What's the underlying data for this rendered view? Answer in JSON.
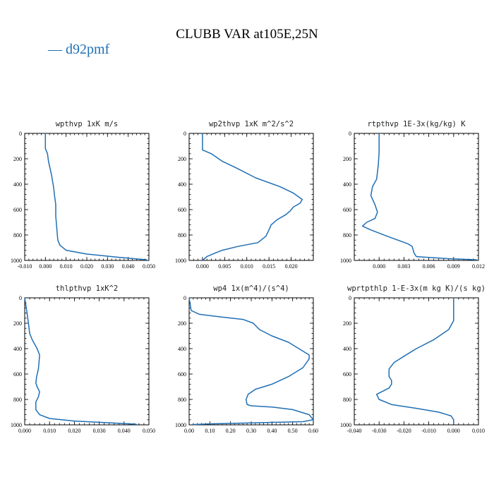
{
  "figure": {
    "title": "CLUBB VAR at105E,25N",
    "legend_label": "d92pmf",
    "series_color": "#1f6fb4"
  },
  "chart_data": [
    {
      "type": "line",
      "title": "wpthvp  1xK m/s",
      "xlim": [
        -0.01,
        0.05
      ],
      "ylim": [
        1000,
        0
      ],
      "xticks": [
        -0.01,
        0.0,
        0.01,
        0.02,
        0.03,
        0.04,
        0.05
      ],
      "xtick_labels": [
        "-0.010",
        "0.000",
        "0.010",
        "0.020",
        "0.030",
        "0.040",
        "0.050"
      ],
      "yticks": [
        0,
        200,
        400,
        600,
        800,
        1000
      ],
      "ytick_labels": [
        "0",
        "200",
        "400",
        "600",
        "800",
        "1000"
      ],
      "series": [
        {
          "x": [
            0.0,
            0.0,
            0.001,
            0.0015,
            0.003,
            0.004,
            0.0045,
            0.005,
            0.005,
            0.0055,
            0.006,
            0.007,
            0.01,
            0.02,
            0.035,
            0.049
          ],
          "y": [
            0,
            120,
            160,
            220,
            330,
            430,
            500,
            560,
            650,
            750,
            840,
            880,
            920,
            950,
            975,
            995
          ]
        }
      ]
    },
    {
      "type": "line",
      "title": "wp2thvp  1xK m^2/s^2",
      "xlim": [
        -0.003,
        0.025
      ],
      "ylim": [
        1000,
        0
      ],
      "xticks": [
        0.0,
        0.005,
        0.01,
        0.015,
        0.02
      ],
      "xtick_labels": [
        "0.000",
        "0.005",
        "0.010",
        "0.015",
        "0.020"
      ],
      "yticks": [
        0,
        200,
        400,
        600,
        800,
        1000
      ],
      "ytick_labels": [
        "0",
        "200",
        "400",
        "600",
        "800",
        "1000"
      ],
      "series": [
        {
          "x": [
            0.0,
            0.0,
            0.0,
            0.002,
            0.0045,
            0.0075,
            0.012,
            0.0175,
            0.0205,
            0.0225,
            0.022,
            0.0205,
            0.0198,
            0.0188,
            0.0168,
            0.0155,
            0.015,
            0.0143,
            0.0125,
            0.008,
            0.0045,
            0.003,
            0.001,
            0.0
          ],
          "y": [
            0,
            110,
            130,
            160,
            220,
            270,
            350,
            420,
            470,
            520,
            550,
            580,
            610,
            640,
            680,
            720,
            760,
            810,
            860,
            890,
            920,
            940,
            970,
            1000
          ]
        }
      ]
    },
    {
      "type": "line",
      "title": "rtpthvp  1E-3x(kg/kg) K",
      "xlim": [
        -0.003,
        0.012
      ],
      "ylim": [
        1000,
        0
      ],
      "xticks": [
        0.0,
        0.003,
        0.006,
        0.009,
        0.012
      ],
      "xtick_labels": [
        "0.000",
        "0.003",
        "0.006",
        "0.009",
        "0.012"
      ],
      "yticks": [
        0,
        200,
        400,
        600,
        800,
        1000
      ],
      "ytick_labels": [
        "0",
        "200",
        "400",
        "600",
        "800",
        "1000"
      ],
      "series": [
        {
          "x": [
            0.0,
            0.0,
            -0.0001,
            -0.0003,
            -0.0008,
            -0.001,
            -0.0005,
            -0.0002,
            -0.0005,
            -0.0015,
            -0.002,
            -0.001,
            0.001,
            0.0035,
            0.004,
            0.0042,
            0.0045,
            0.008,
            0.0118
          ],
          "y": [
            0,
            150,
            250,
            360,
            420,
            490,
            560,
            620,
            670,
            700,
            730,
            760,
            810,
            870,
            890,
            940,
            970,
            985,
            995
          ]
        }
      ]
    },
    {
      "type": "line",
      "title": "thlpthvp  1xK^2",
      "xlim": [
        0.0,
        0.05
      ],
      "ylim": [
        1000,
        0
      ],
      "xticks": [
        0.0,
        0.01,
        0.02,
        0.03,
        0.04,
        0.05
      ],
      "xtick_labels": [
        "0.000",
        "0.010",
        "0.020",
        "0.030",
        "0.040",
        "0.050"
      ],
      "yticks": [
        0,
        200,
        400,
        600,
        800,
        1000
      ],
      "ytick_labels": [
        "0",
        "200",
        "400",
        "600",
        "800",
        "1000"
      ],
      "series": [
        {
          "x": [
            0.0,
            0.0008,
            0.0015,
            0.002,
            0.003,
            0.005,
            0.006,
            0.0058,
            0.0055,
            0.0048,
            0.0045,
            0.005,
            0.006,
            0.0055,
            0.0045,
            0.0045,
            0.006,
            0.01,
            0.02,
            0.035,
            0.045
          ],
          "y": [
            0,
            100,
            200,
            280,
            330,
            400,
            450,
            500,
            560,
            620,
            670,
            700,
            740,
            780,
            820,
            880,
            920,
            950,
            970,
            985,
            995
          ]
        }
      ]
    },
    {
      "type": "line",
      "title": "wp4  1x(m^4)/(s^4)",
      "xlim": [
        0.0,
        0.6
      ],
      "ylim": [
        1000,
        0
      ],
      "xticks": [
        0.0,
        0.1,
        0.2,
        0.3,
        0.4,
        0.5,
        0.6
      ],
      "xtick_labels": [
        "0.00",
        "0.10",
        "0.20",
        "0.30",
        "0.40",
        "0.50",
        "0.60"
      ],
      "yticks": [
        0,
        200,
        400,
        600,
        800,
        1000
      ],
      "ytick_labels": [
        "0",
        "200",
        "400",
        "600",
        "800",
        "1000"
      ],
      "series": [
        {
          "x": [
            0.0,
            0.01,
            0.05,
            0.15,
            0.26,
            0.31,
            0.34,
            0.4,
            0.48,
            0.53,
            0.58,
            0.58,
            0.55,
            0.48,
            0.4,
            0.32,
            0.285,
            0.275,
            0.28,
            0.3,
            0.4,
            0.5,
            0.58,
            0.6,
            0.55,
            0.3,
            0.1,
            0.02
          ],
          "y": [
            0,
            100,
            130,
            150,
            170,
            200,
            250,
            300,
            350,
            400,
            450,
            480,
            550,
            620,
            680,
            720,
            760,
            800,
            840,
            850,
            860,
            880,
            920,
            960,
            975,
            985,
            992,
            998
          ]
        }
      ]
    },
    {
      "type": "line",
      "title": "wprtpthlp  1-E-3x(m kg K)/(s kg)",
      "xlim": [
        -0.04,
        0.01
      ],
      "ylim": [
        1000,
        0
      ],
      "xticks": [
        -0.04,
        -0.03,
        -0.02,
        -0.01,
        0.0,
        0.01
      ],
      "xtick_labels": [
        "-0.040",
        "-0.030",
        "-0.020",
        "-0.010",
        "0.000",
        "0.010"
      ],
      "yticks": [
        0,
        200,
        400,
        600,
        800,
        1000
      ],
      "ytick_labels": [
        "0",
        "200",
        "400",
        "600",
        "800",
        "1000"
      ],
      "series": [
        {
          "x": [
            0.0,
            0.0,
            -0.002,
            -0.008,
            -0.015,
            -0.02,
            -0.024,
            -0.026,
            -0.026,
            -0.025,
            -0.025,
            -0.026,
            -0.029,
            -0.031,
            -0.03,
            -0.025,
            -0.015,
            -0.006,
            -0.001,
            0.0,
            0.0
          ],
          "y": [
            0,
            180,
            250,
            330,
            400,
            460,
            510,
            560,
            620,
            650,
            680,
            710,
            740,
            760,
            800,
            840,
            870,
            900,
            930,
            960,
            990
          ]
        }
      ]
    }
  ]
}
